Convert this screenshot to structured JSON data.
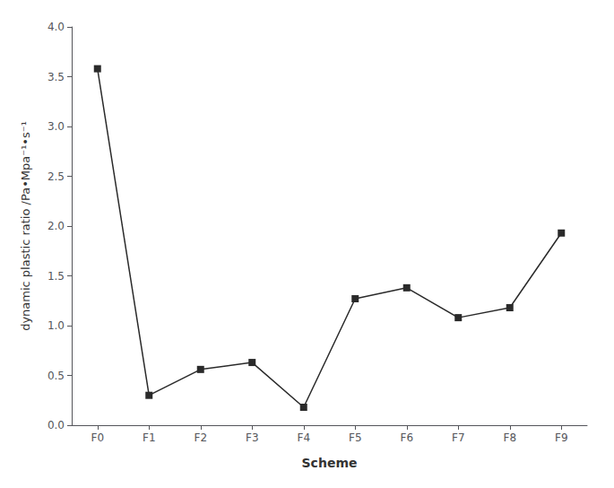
{
  "chart_data": {
    "type": "line",
    "categories": [
      "F0",
      "F1",
      "F2",
      "F3",
      "F4",
      "F5",
      "F6",
      "F7",
      "F8",
      "F9"
    ],
    "values": [
      3.58,
      0.3,
      0.56,
      0.63,
      0.18,
      1.27,
      1.38,
      1.08,
      1.18,
      1.93
    ],
    "xlabel": "Scheme",
    "ylabel": "dynamic plastic ratio /Pa•Mpa⁻¹•s⁻¹",
    "ylim": [
      0.0,
      4.0
    ],
    "yticks": [
      {
        "value": 0,
        "label": "0.0"
      },
      0.5,
      {
        "value": 1,
        "label": "1.0"
      },
      1.5,
      {
        "value": 2,
        "label": "2.0"
      },
      2.5,
      {
        "value": 3,
        "label": "3.0"
      },
      3.5,
      {
        "value": 4,
        "label": "4.0"
      }
    ],
    "color": "#2a2a2a",
    "marker": "square",
    "grid": false
  }
}
